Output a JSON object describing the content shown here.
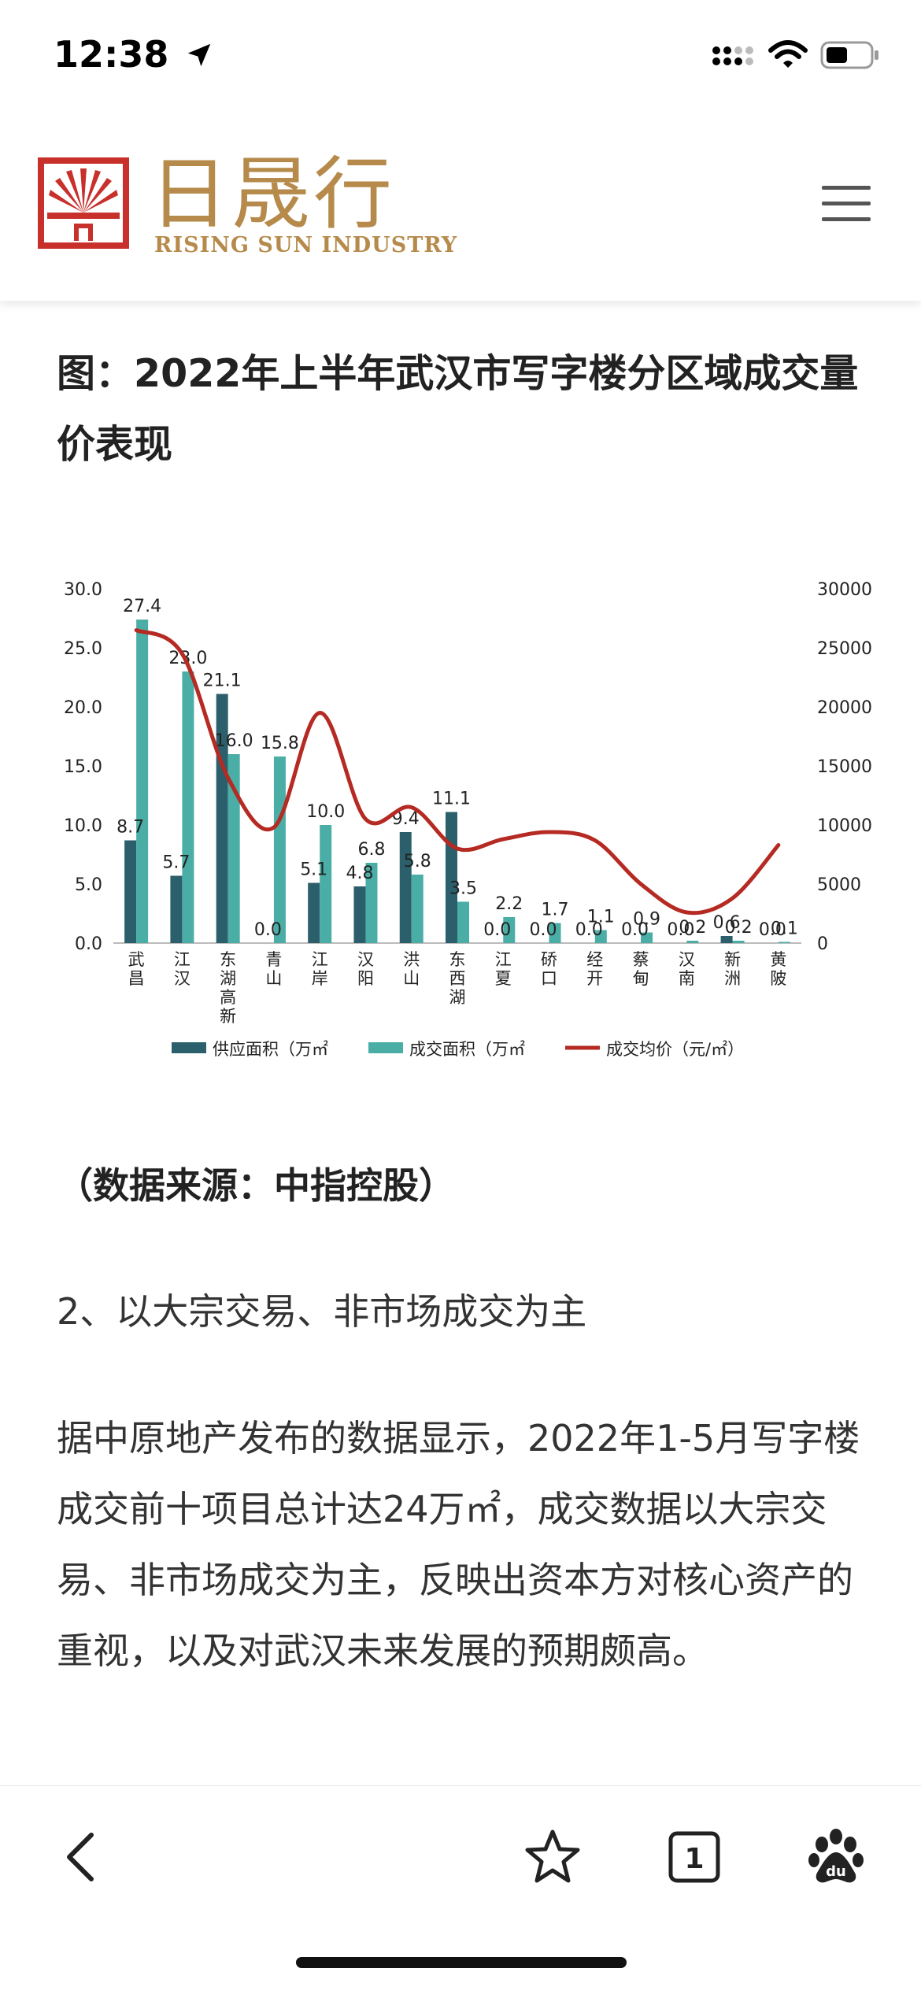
{
  "status_bar": {
    "time": "12:38"
  },
  "header": {
    "logo_cn": "日晟行",
    "logo_en": "RISING SUN INDUSTRY"
  },
  "article": {
    "title": "图：2022年上半年武汉市写字楼分区域成交量价表现",
    "source": "（数据来源：中指控股）",
    "subheading": "2、以大宗交易、非市场成交为主",
    "paragraph": "据中原地产发布的数据显示，2022年1-5月写字楼成交前十项目总计达24万㎡，成交数据以大宗交易、非市场成交为主，反映出资本方对核心资产的重视，以及对武汉未来发展的预期颇高。"
  },
  "chart_data": {
    "type": "bar",
    "categories": [
      "武昌",
      "江汉",
      "东湖高新",
      "青山",
      "江岸",
      "汉阳",
      "洪山",
      "东西湖",
      "江夏",
      "硚口",
      "经开",
      "蔡甸",
      "汉南",
      "新洲",
      "黄陂"
    ],
    "series": [
      {
        "name": "供应面积（万㎡",
        "type": "bar",
        "axis": "left",
        "color": "#2b5f6b",
        "values": [
          8.7,
          5.7,
          21.1,
          0.0,
          5.1,
          4.8,
          9.4,
          11.1,
          0.0,
          0.0,
          0.0,
          0.0,
          0.0,
          0.6,
          0.0
        ]
      },
      {
        "name": "成交面积（万㎡",
        "type": "bar",
        "axis": "left",
        "color": "#4aada6",
        "values": [
          27.4,
          23.0,
          16.0,
          15.8,
          10.0,
          6.8,
          5.8,
          3.5,
          2.2,
          1.7,
          1.1,
          0.9,
          0.2,
          0.2,
          0.1
        ]
      },
      {
        "name": "成交均价（元/㎡）",
        "type": "line",
        "axis": "right",
        "color": "#b52a22",
        "values": [
          26500,
          24500,
          14000,
          9800,
          19500,
          10500,
          11500,
          8000,
          8800,
          9400,
          8700,
          5000,
          2600,
          3800,
          8300
        ]
      }
    ],
    "y_left": {
      "min": 0,
      "max": 30,
      "ticks": [
        "0.0",
        "5.0",
        "10.0",
        "15.0",
        "20.0",
        "25.0",
        "30.0"
      ]
    },
    "y_right": {
      "min": 0,
      "max": 30000,
      "ticks": [
        "0",
        "5000",
        "10000",
        "15000",
        "20000",
        "25000",
        "30000"
      ]
    },
    "grid": false,
    "legend_position": "bottom"
  }
}
